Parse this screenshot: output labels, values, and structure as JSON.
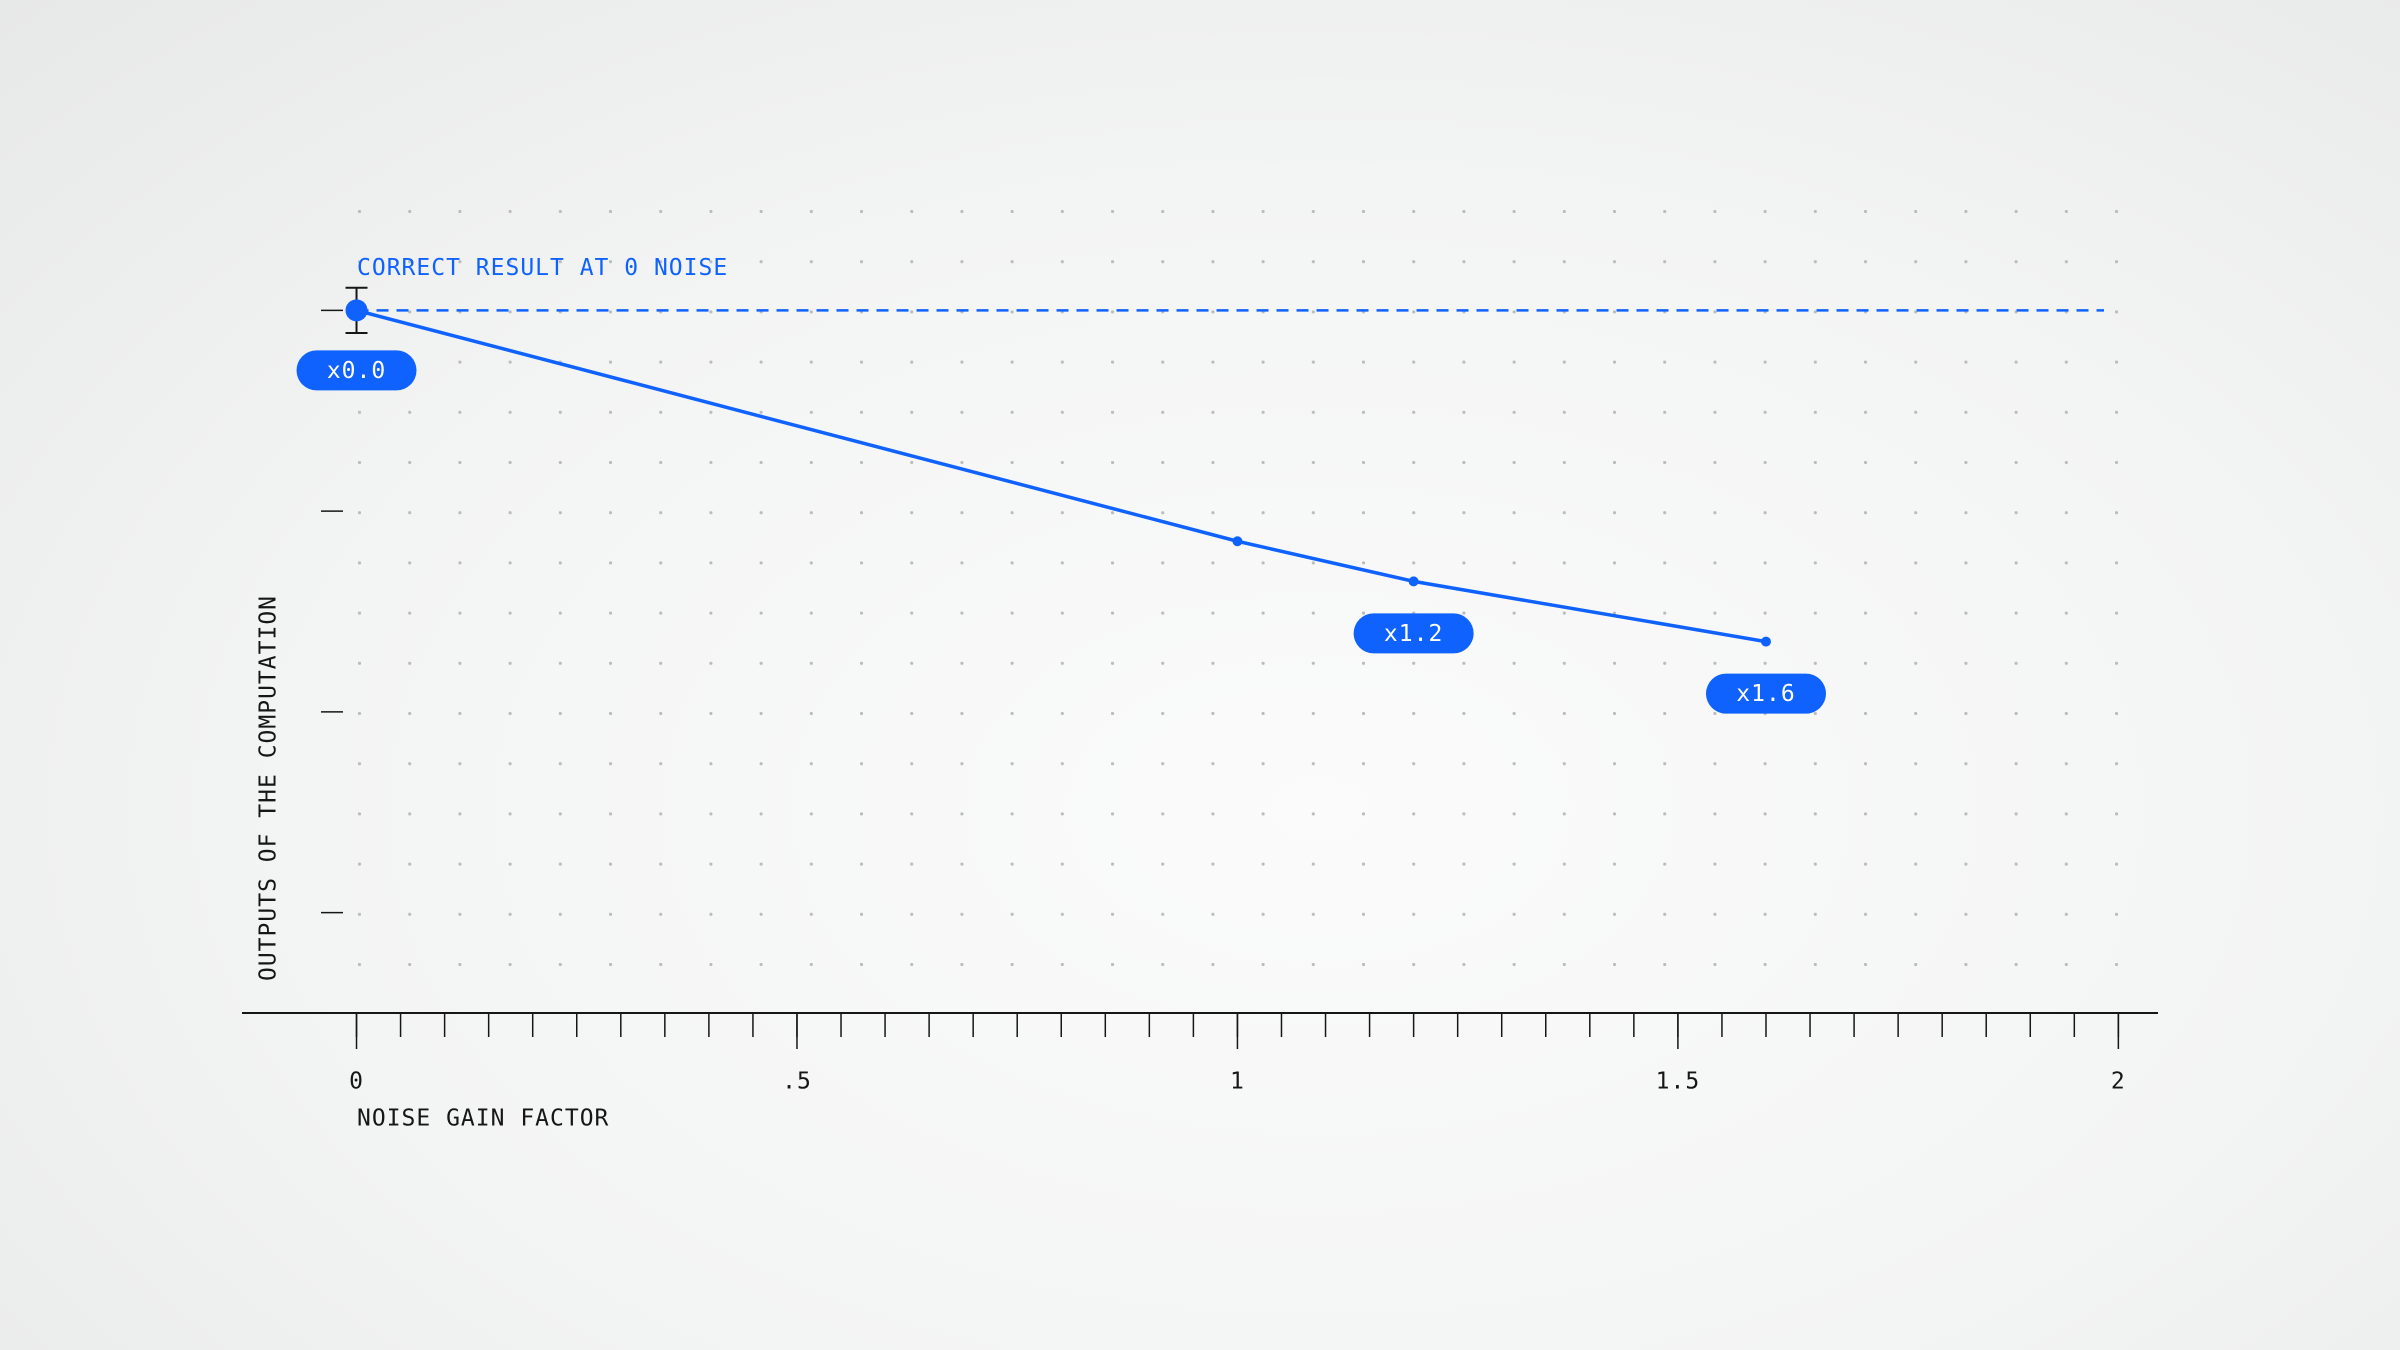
{
  "chart_data": {
    "type": "line",
    "x_label": "NOISE GAIN FACTOR",
    "y_label": "OUTPUTS OF THE COMPUTATION",
    "x": [
      0,
      1,
      1.2,
      1.6
    ],
    "series": [
      {
        "color": "#0f62fe",
        "values": [
          14,
          9.4,
          8.6,
          7.4
        ],
        "errors": [
          0.45,
          null,
          null,
          null
        ]
      }
    ],
    "point_labels": [
      "x0.0",
      null,
      "x1.2",
      "x1.6"
    ],
    "reference": {
      "label": "CORRECT RESULT AT 0 NOISE",
      "value": 14
    },
    "xlim": [
      -0.13,
      2.045
    ],
    "xticks": [
      0,
      {
        "value": 0.5,
        "label": ".5"
      },
      1,
      1.5,
      2
    ],
    "xminor": 0.05,
    "ylim": [
      0,
      16
    ],
    "yticks": [
      2,
      6,
      10,
      14
    ]
  }
}
